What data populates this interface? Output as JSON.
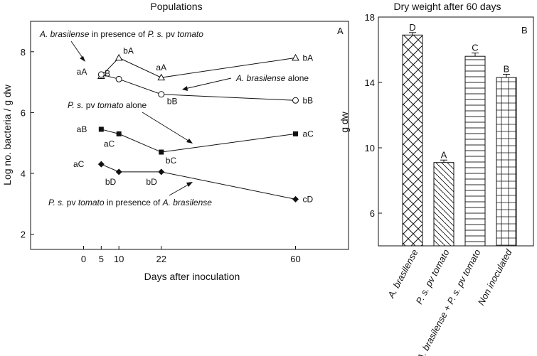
{
  "chart_data": [
    {
      "type": "line",
      "panel_letter": "A",
      "title": "Populations",
      "xlabel": "Days after inoculation",
      "ylabel": "Log no. bacteria / g dw",
      "x_ticks": [
        "0",
        "5",
        "10",
        "22",
        "60"
      ],
      "y_ticks": [
        "2",
        "4",
        "6",
        "8"
      ],
      "xlim": [
        -15,
        75
      ],
      "ylim": [
        1.5,
        9.0
      ],
      "series": [
        {
          "id": "abr_ps",
          "marker": "open-triangle",
          "x": [
            5,
            10,
            22,
            60
          ],
          "y": [
            7.2,
            7.8,
            7.15,
            7.8
          ],
          "labels": [
            "aA",
            "bA",
            "aA",
            "bA"
          ]
        },
        {
          "id": "abr_alone",
          "marker": "open-circle",
          "x": [
            5,
            10,
            22,
            60
          ],
          "y": [
            7.25,
            7.1,
            6.6,
            6.4
          ],
          "labels": [
            "",
            "aB",
            "bB",
            "bB"
          ]
        },
        {
          "id": "ps_alone",
          "marker": "filled-square",
          "x": [
            5,
            10,
            22,
            60
          ],
          "y": [
            5.45,
            5.3,
            4.7,
            5.3
          ],
          "labels": [
            "aB",
            "aC",
            "bC",
            "aC"
          ]
        },
        {
          "id": "ps_abr",
          "marker": "filled-diamond",
          "x": [
            5,
            10,
            22,
            60
          ],
          "y": [
            4.3,
            4.05,
            4.05,
            3.15
          ],
          "labels": [
            "aC",
            "bD",
            "bD",
            "cD"
          ]
        }
      ],
      "annotations": {
        "abr_ps": {
          "italic1": "A. brasilense",
          "mid": " in presence of ",
          "italic2": "P. s.",
          "tail": " pv ",
          "italic3": "tomato"
        },
        "abr_alone": {
          "italic1": "A. brasilense",
          "tail": " alone"
        },
        "ps_alone": {
          "italic1": "P. s.",
          "mid": " pv ",
          "italic2": "tomato",
          "tail": " alone"
        },
        "ps_abr": {
          "italic1": "P. s.",
          "mid": " pv ",
          "italic2": "tomato",
          "mid2": " in presence of ",
          "italic3": "A. brasilense"
        }
      }
    },
    {
      "type": "bar",
      "panel_letter": "B",
      "title": "Dry weight after 60 days",
      "ylabel": "g dw",
      "y_ticks": [
        "6",
        "10",
        "14",
        "18"
      ],
      "ylim": [
        4,
        18
      ],
      "categories": [
        "A. brasilense",
        "P. s. pv tomato",
        "A. brasilense + P. s. pv tomato",
        "Non inoculated"
      ],
      "values": [
        16.9,
        9.1,
        15.6,
        14.3
      ],
      "error": [
        0.15,
        0.15,
        0.2,
        0.2
      ],
      "letters": [
        "D",
        "A",
        "C",
        "B"
      ],
      "patterns": [
        "crosshatch",
        "diagonal",
        "horizontal",
        "grid"
      ]
    }
  ]
}
